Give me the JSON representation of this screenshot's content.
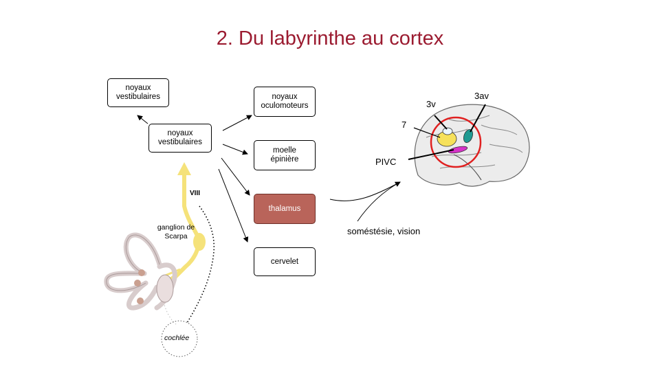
{
  "title": "2. Du labyrinthe au cortex",
  "boxes": {
    "vest_top": "noyaux\nvestibulaires",
    "vest_main": "noyaux\nvestibulaires",
    "oculo": "noyaux\noculomoteurs",
    "moelle": "moelle\népinière",
    "thalamus": "thalamus",
    "cervelet": "cervelet"
  },
  "labels": {
    "viii": "VIII",
    "ganglion": "ganglion de\nScarpa",
    "cochlee": "cochlée",
    "somesthesie": "soméstésie, vision",
    "area_7": "7",
    "area_3v": "3v",
    "area_3av": "3av",
    "area_pivc": "PIVC"
  },
  "colors": {
    "title": "#9b1b30",
    "thalamus_fill": "#b9645a",
    "nerve": "#f5e27a",
    "area_7": "#f6e15a",
    "area_3av": "#1f9a91",
    "area_pivc": "#d633c8",
    "highlight_circle": "#e02020"
  }
}
